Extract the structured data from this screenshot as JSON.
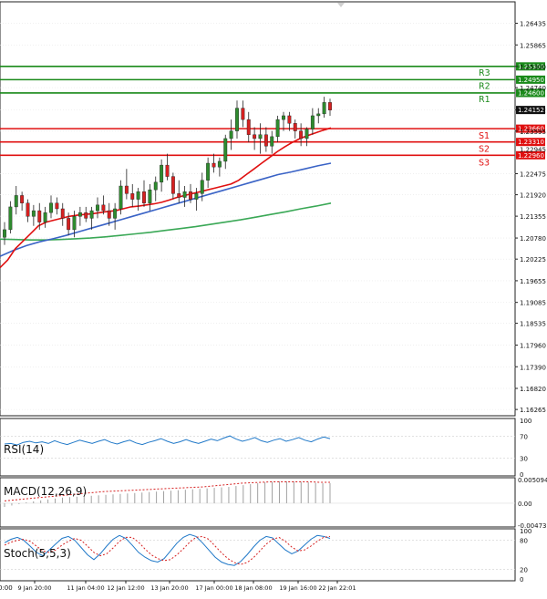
{
  "chart_data": [
    {
      "type": "candlestick",
      "panel": "main",
      "instrument_hint": "GBP/USD",
      "y_ticks": [
        "1.26435",
        "1.25865",
        "1.25300",
        "1.24740",
        "1.24152",
        "1.23595",
        "1.22475",
        "1.21920",
        "1.21355",
        "1.20780",
        "1.20225",
        "1.19655",
        "1.19085",
        "1.18535",
        "1.17960",
        "1.17390",
        "1.16820",
        "1.16265"
      ],
      "ylim": [
        1.161,
        1.27
      ],
      "current_price": {
        "value": 1.24152,
        "label": "1.24152"
      },
      "levels": [
        {
          "name": "R3",
          "value": 1.253,
          "label": "1.25300",
          "color": "#1a8a1a"
        },
        {
          "name": "R2",
          "value": 1.2495,
          "label": "1.24950",
          "color": "#1a8a1a"
        },
        {
          "name": "R1",
          "value": 1.246,
          "label": "1.24600",
          "color": "#1a8a1a"
        },
        {
          "name": "S1",
          "value": 1.2366,
          "label": "1.23660",
          "color": "#e01010"
        },
        {
          "name": "S2",
          "value": 1.2331,
          "label": "1.23310",
          "color": "#e01010"
        },
        {
          "name": "S3",
          "value": 1.2296,
          "label": "1.22960",
          "color": "#e01010"
        }
      ],
      "overlap_label": "1.22945",
      "x_labels": [
        "9 Jan 20:00",
        "11 Jan 04:00",
        "12 Jan 12:00",
        "13 Jan 20:00",
        "17 Jan 00:00",
        "18 Jan 08:00",
        "19 Jan 16:00",
        "22 Jan 22:01"
      ],
      "x_label_truncated": "0:00",
      "candles": [
        [
          1.208,
          1.212,
          1.206,
          1.21
        ],
        [
          1.21,
          1.2175,
          1.209,
          1.216
        ],
        [
          1.216,
          1.2215,
          1.214,
          1.219
        ],
        [
          1.219,
          1.22,
          1.215,
          1.217
        ],
        [
          1.217,
          1.218,
          1.212,
          1.2135
        ],
        [
          1.2135,
          1.2165,
          1.211,
          1.215
        ],
        [
          1.215,
          1.217,
          1.21,
          1.212
        ],
        [
          1.212,
          1.216,
          1.2105,
          1.2145
        ],
        [
          1.2145,
          1.219,
          1.213,
          1.217
        ],
        [
          1.217,
          1.2185,
          1.214,
          1.2155
        ],
        [
          1.2155,
          1.217,
          1.211,
          1.213
        ],
        [
          1.213,
          1.2145,
          1.2085,
          1.21
        ],
        [
          1.21,
          1.215,
          1.208,
          1.2135
        ],
        [
          1.2135,
          1.216,
          1.211,
          1.2145
        ],
        [
          1.2145,
          1.216,
          1.212,
          1.213
        ],
        [
          1.213,
          1.216,
          1.21,
          1.215
        ],
        [
          1.215,
          1.2185,
          1.213,
          1.2165
        ],
        [
          1.2165,
          1.219,
          1.214,
          1.215
        ],
        [
          1.215,
          1.217,
          1.211,
          1.213
        ],
        [
          1.213,
          1.217,
          1.21,
          1.2155
        ],
        [
          1.2155,
          1.223,
          1.214,
          1.2215
        ],
        [
          1.2215,
          1.226,
          1.218,
          1.2195
        ],
        [
          1.2195,
          1.222,
          1.216,
          1.218
        ],
        [
          1.218,
          1.221,
          1.215,
          1.22
        ],
        [
          1.22,
          1.223,
          1.216,
          1.217
        ],
        [
          1.217,
          1.222,
          1.215,
          1.2205
        ],
        [
          1.2205,
          1.224,
          1.2175,
          1.2225
        ],
        [
          1.2225,
          1.2285,
          1.22,
          1.227
        ],
        [
          1.227,
          1.23,
          1.223,
          1.224
        ],
        [
          1.224,
          1.225,
          1.218,
          1.2195
        ],
        [
          1.2195,
          1.223,
          1.217,
          1.2185
        ],
        [
          1.2185,
          1.2215,
          1.216,
          1.22
        ],
        [
          1.22,
          1.222,
          1.217,
          1.218
        ],
        [
          1.218,
          1.221,
          1.215,
          1.2195
        ],
        [
          1.2195,
          1.225,
          1.2175,
          1.223
        ],
        [
          1.223,
          1.229,
          1.221,
          1.2275
        ],
        [
          1.2275,
          1.23,
          1.225,
          1.2265
        ],
        [
          1.2265,
          1.229,
          1.224,
          1.228
        ],
        [
          1.228,
          1.235,
          1.226,
          1.234
        ],
        [
          1.234,
          1.239,
          1.231,
          1.236
        ],
        [
          1.236,
          1.244,
          1.234,
          1.242
        ],
        [
          1.242,
          1.244,
          1.237,
          1.239
        ],
        [
          1.239,
          1.241,
          1.233,
          1.235
        ],
        [
          1.235,
          1.237,
          1.231,
          1.234
        ],
        [
          1.234,
          1.238,
          1.23,
          1.235
        ],
        [
          1.235,
          1.237,
          1.2305,
          1.232
        ],
        [
          1.232,
          1.236,
          1.23,
          1.2345
        ],
        [
          1.2345,
          1.24,
          1.233,
          1.239
        ],
        [
          1.239,
          1.241,
          1.236,
          1.24
        ],
        [
          1.24,
          1.241,
          1.236,
          1.238
        ],
        [
          1.238,
          1.239,
          1.234,
          1.236
        ],
        [
          1.236,
          1.238,
          1.232,
          1.234
        ],
        [
          1.234,
          1.237,
          1.232,
          1.2365
        ],
        [
          1.2365,
          1.242,
          1.235,
          1.24
        ],
        [
          1.24,
          1.242,
          1.238,
          1.2405
        ],
        [
          1.2405,
          1.245,
          1.2395,
          1.2435
        ],
        [
          1.2435,
          1.2445,
          1.24,
          1.2415
        ]
      ],
      "ma_fast": [
        1.2,
        1.202,
        1.205,
        1.207,
        1.209,
        1.211,
        1.212,
        1.2125,
        1.213,
        1.2135,
        1.2138,
        1.214,
        1.2142,
        1.2145,
        1.2148,
        1.215,
        1.2155,
        1.216,
        1.2162,
        1.2165,
        1.2168,
        1.2172,
        1.2178,
        1.2185,
        1.219,
        1.2195,
        1.22,
        1.2205,
        1.221,
        1.2215,
        1.222,
        1.223,
        1.2245,
        1.226,
        1.2275,
        1.229,
        1.2305,
        1.2318,
        1.233,
        1.234,
        1.2348,
        1.2355,
        1.2362,
        1.2368
      ],
      "ma_mid": [
        1.203,
        1.2045,
        1.2058,
        1.2068,
        1.2076,
        1.2085,
        1.2095,
        1.2105,
        1.2115,
        1.2125,
        1.2135,
        1.2145,
        1.2155,
        1.2165,
        1.2175,
        1.2185,
        1.2195,
        1.2205,
        1.2215,
        1.2225,
        1.2235,
        1.2245,
        1.2252,
        1.226,
        1.2268,
        1.2275
      ],
      "ma_slow": [
        1.2075,
        1.2074,
        1.2073,
        1.2073,
        1.2074,
        1.2076,
        1.2078,
        1.2081,
        1.2085,
        1.2089,
        1.2093,
        1.2098,
        1.2103,
        1.2108,
        1.2114,
        1.212,
        1.2126,
        1.2133,
        1.214,
        1.2147,
        1.2155,
        1.2162,
        1.217
      ],
      "series_colors": {
        "bull": "#2e8b2e",
        "bear": "#d62020",
        "ma_fast": "#e01010",
        "ma_mid": "#3a63c6",
        "ma_slow": "#3aa856"
      }
    },
    {
      "type": "line",
      "panel": "rsi",
      "label": "RSI(14)",
      "y_ticks": [
        "100",
        "70",
        "30",
        "0"
      ],
      "ylim": [
        0,
        100
      ],
      "values": [
        56,
        57,
        54,
        59,
        61,
        58,
        60,
        57,
        62,
        58,
        55,
        59,
        63,
        60,
        57,
        61,
        64,
        59,
        56,
        60,
        63,
        58,
        55,
        59,
        62,
        66,
        61,
        57,
        60,
        64,
        60,
        57,
        61,
        65,
        62,
        67,
        71,
        65,
        61,
        64,
        68,
        62,
        59,
        63,
        66,
        61,
        64,
        68,
        63,
        60,
        65,
        69,
        66
      ],
      "color": "#1f78c8"
    },
    {
      "type": "bar+line",
      "panel": "macd",
      "label": "MACD(12,26,9)",
      "y_ticks": [
        "0.005094",
        "0.00",
        "-0.004731"
      ],
      "ylim": [
        -0.004731,
        0.005094
      ],
      "hist": [
        -0.0008,
        -0.0005,
        -0.0002,
        0.0002,
        0.0004,
        0.0006,
        0.0008,
        0.001,
        0.0012,
        0.0013,
        0.0014,
        0.0015,
        0.0016,
        0.0017,
        0.0018,
        0.0019,
        0.002,
        0.0021,
        0.0022,
        0.0023,
        0.0024,
        0.0025,
        0.0026,
        0.0027,
        0.0028,
        0.0029,
        0.003,
        0.0031,
        0.0032,
        0.0033,
        0.0034,
        0.0035,
        0.0037,
        0.0039,
        0.0041,
        0.0043,
        0.0045,
        0.0046,
        0.0047,
        0.0047,
        0.0047,
        0.0046,
        0.0045,
        0.0044,
        0.0043,
        0.0043
      ],
      "signal": [
        0.0005,
        0.0007,
        0.0009,
        0.0011,
        0.0013,
        0.0015,
        0.0017,
        0.0019,
        0.0021,
        0.0023,
        0.0025,
        0.0026,
        0.0027,
        0.0028,
        0.0029,
        0.003,
        0.0031,
        0.0032,
        0.0033,
        0.0034,
        0.0035,
        0.0037,
        0.0039,
        0.0041,
        0.0043,
        0.0044,
        0.0045,
        0.0046,
        0.0046,
        0.0046,
        0.0046,
        0.0046,
        0.0045,
        0.0045
      ],
      "hist_color": "#a0a0a0",
      "signal_color": "#d62020"
    },
    {
      "type": "line",
      "panel": "stoch",
      "label": "Stoch(5,5,3)",
      "y_ticks": [
        "100",
        "80",
        "20",
        "0"
      ],
      "ylim": [
        0,
        100
      ],
      "k": [
        75,
        82,
        86,
        80,
        68,
        55,
        48,
        60,
        72,
        84,
        88,
        80,
        65,
        50,
        40,
        52,
        68,
        82,
        90,
        84,
        70,
        55,
        45,
        38,
        35,
        42,
        58,
        74,
        86,
        92,
        88,
        75,
        60,
        45,
        35,
        30,
        28,
        36,
        50,
        66,
        80,
        88,
        85,
        72,
        60,
        52,
        58,
        70,
        82,
        90,
        88,
        84
      ],
      "d": [
        70,
        76,
        80,
        82,
        78,
        68,
        58,
        55,
        60,
        70,
        78,
        84,
        80,
        68,
        55,
        48,
        52,
        64,
        78,
        86,
        86,
        76,
        62,
        50,
        42,
        38,
        40,
        50,
        62,
        76,
        86,
        88,
        82,
        68,
        54,
        42,
        34,
        30,
        34,
        44,
        58,
        72,
        82,
        86,
        78,
        66,
        58,
        60,
        68,
        78,
        86,
        88
      ],
      "k_color": "#1f78c8",
      "d_color": "#d62020"
    }
  ]
}
